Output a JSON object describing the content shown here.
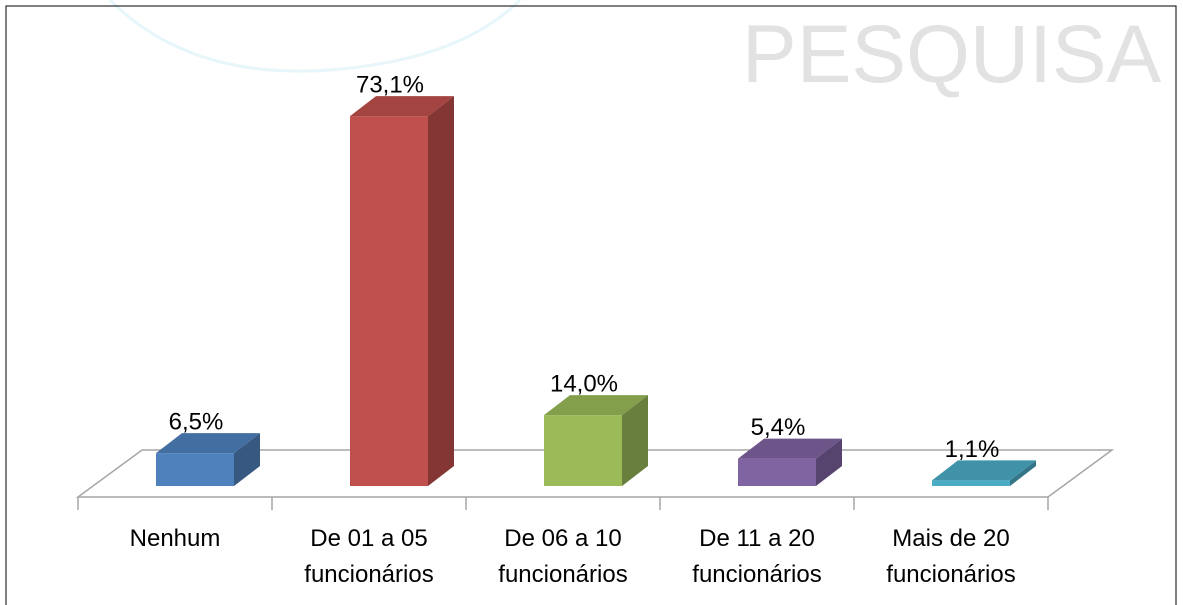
{
  "chart_data": {
    "type": "bar3d",
    "watermark": "PESQUISA",
    "categories": [
      "Nenhum",
      "De 01 a 05 funcionários",
      "De 06 a 10 funcionários",
      "De 11 a 20 funcionários",
      "Mais de 20 funcionários"
    ],
    "values": [
      6.5,
      73.1,
      14.0,
      5.4,
      1.1
    ],
    "value_labels": [
      "6,5%",
      "73,1%",
      "14,0%",
      "5,4%",
      "1,1%"
    ],
    "colors": [
      "#4f81bd",
      "#c0504d",
      "#9bbb59",
      "#8064a2",
      "#4bacc6"
    ]
  }
}
